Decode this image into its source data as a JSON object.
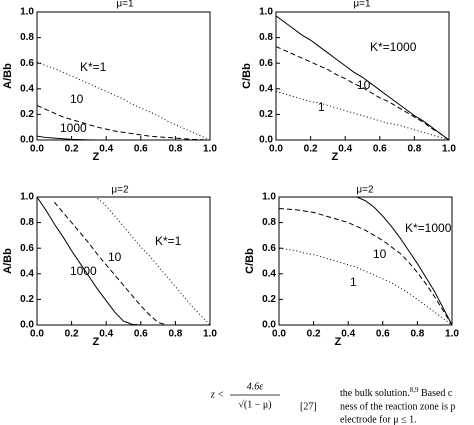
{
  "chart_data": [
    {
      "type": "line",
      "title": "μ=1",
      "xlabel": "Z",
      "ylabel": "A/Bb",
      "x": [
        0,
        0.05,
        0.1,
        0.15,
        0.2,
        0.25,
        0.3,
        0.35,
        0.4,
        0.45,
        0.5,
        0.55,
        0.6,
        0.65,
        0.7,
        0.75,
        0.8,
        0.85,
        0.9,
        0.95,
        1.0
      ],
      "xlim": [
        0,
        1
      ],
      "ylim": [
        0,
        1
      ],
      "xticks": [
        {
          "value": 0,
          "label": "0.0"
        },
        {
          "value": 0.2,
          "label": "0.2"
        },
        {
          "value": 0.4,
          "label": "0.4"
        },
        {
          "value": 0.6,
          "label": "0.6"
        },
        {
          "value": 0.8,
          "label": "0.8"
        },
        {
          "value": 1,
          "label": "1.0"
        }
      ],
      "yticks": [
        {
          "value": 0,
          "label": "0.0"
        },
        {
          "value": 0.2,
          "label": "0.2"
        },
        {
          "value": 0.4,
          "label": "0.4"
        },
        {
          "value": 0.6,
          "label": "0.6"
        },
        {
          "value": 0.8,
          "label": "0.8"
        },
        {
          "value": 1,
          "label": "1.0"
        }
      ],
      "series": [
        {
          "name": "K*=1",
          "color": "#000000",
          "style": "dotted",
          "values": [
            0.61,
            0.58,
            0.56,
            0.53,
            0.5,
            0.47,
            0.44,
            0.41,
            0.38,
            0.35,
            0.32,
            0.28,
            0.25,
            0.22,
            0.19,
            0.15,
            0.12,
            0.09,
            0.06,
            0.03,
            0
          ]
        },
        {
          "name": "10",
          "color": "#000000",
          "style": "dashed",
          "values": [
            0.27,
            0.24,
            0.21,
            0.18,
            0.16,
            0.14,
            0.12,
            0.1,
            0.085,
            0.07,
            0.06,
            0.05,
            0.04,
            0.03,
            0.025,
            0.02,
            0.015,
            0.01,
            0.005,
            0.002,
            0
          ]
        },
        {
          "name": "1000",
          "color": "#000000",
          "style": "solid",
          "values": [
            0.03,
            0.02,
            0.015,
            0.01,
            0.005,
            0.003,
            0.001,
            0,
            0,
            0,
            0,
            0,
            0,
            0,
            0,
            0,
            0,
            0,
            0,
            0,
            0
          ]
        }
      ]
    },
    {
      "type": "line",
      "title": "μ=1",
      "xlabel": "Z",
      "ylabel": "C/Bb",
      "x": [
        0,
        0.05,
        0.1,
        0.15,
        0.2,
        0.25,
        0.3,
        0.35,
        0.4,
        0.45,
        0.5,
        0.55,
        0.6,
        0.65,
        0.7,
        0.75,
        0.8,
        0.85,
        0.9,
        0.95,
        1.0
      ],
      "xlim": [
        0,
        1
      ],
      "ylim": [
        0,
        1
      ],
      "xticks": [
        {
          "value": 0,
          "label": "0.0"
        },
        {
          "value": 0.2,
          "label": "0.2"
        },
        {
          "value": 0.4,
          "label": "0.4"
        },
        {
          "value": 0.6,
          "label": "0.6"
        },
        {
          "value": 0.8,
          "label": "0.8"
        },
        {
          "value": 1,
          "label": "1.0"
        }
      ],
      "yticks": [
        {
          "value": 0,
          "label": "0.0"
        },
        {
          "value": 0.2,
          "label": "0.2"
        },
        {
          "value": 0.4,
          "label": "0.4"
        },
        {
          "value": 0.6,
          "label": "0.6"
        },
        {
          "value": 0.8,
          "label": "0.8"
        },
        {
          "value": 1,
          "label": "1.0"
        }
      ],
      "series": [
        {
          "name": "K*=1000",
          "color": "#000000",
          "style": "solid",
          "values": [
            0.97,
            0.92,
            0.87,
            0.82,
            0.78,
            0.73,
            0.68,
            0.63,
            0.58,
            0.53,
            0.49,
            0.44,
            0.39,
            0.34,
            0.29,
            0.24,
            0.19,
            0.15,
            0.1,
            0.05,
            0
          ]
        },
        {
          "name": "10",
          "color": "#000000",
          "style": "dashed",
          "values": [
            0.73,
            0.7,
            0.67,
            0.64,
            0.61,
            0.58,
            0.55,
            0.51,
            0.48,
            0.44,
            0.41,
            0.37,
            0.33,
            0.3,
            0.26,
            0.22,
            0.18,
            0.14,
            0.09,
            0.05,
            0
          ]
        },
        {
          "name": "1",
          "color": "#000000",
          "style": "dotted",
          "values": [
            0.38,
            0.36,
            0.34,
            0.32,
            0.3,
            0.29,
            0.27,
            0.25,
            0.23,
            0.21,
            0.19,
            0.17,
            0.15,
            0.13,
            0.12,
            0.1,
            0.08,
            0.06,
            0.04,
            0.02,
            0
          ]
        }
      ]
    },
    {
      "type": "line",
      "title": "μ=2",
      "xlabel": "Z",
      "ylabel": "A/Bb",
      "x": [
        0,
        0.05,
        0.1,
        0.15,
        0.2,
        0.25,
        0.3,
        0.35,
        0.4,
        0.45,
        0.5,
        0.55,
        0.6,
        0.65,
        0.7,
        0.75,
        0.8,
        0.85,
        0.9,
        0.95,
        1.0
      ],
      "xlim": [
        0,
        1
      ],
      "ylim": [
        0,
        1
      ],
      "xticks": [
        {
          "value": 0,
          "label": "0.0"
        },
        {
          "value": 0.2,
          "label": "0.2"
        },
        {
          "value": 0.4,
          "label": "0.4"
        },
        {
          "value": 0.6,
          "label": "0.6"
        },
        {
          "value": 0.8,
          "label": "0.8"
        },
        {
          "value": 1,
          "label": "1.0"
        }
      ],
      "yticks": [
        {
          "value": 0,
          "label": "0.0"
        },
        {
          "value": 0.2,
          "label": "0.2"
        },
        {
          "value": 0.4,
          "label": "0.4"
        },
        {
          "value": 0.6,
          "label": "0.6"
        },
        {
          "value": 0.8,
          "label": "0.8"
        },
        {
          "value": 1,
          "label": "1.0"
        }
      ],
      "series": [
        {
          "name": "K*=1",
          "color": "#000000",
          "style": "dotted",
          "values": [
            null,
            null,
            null,
            null,
            null,
            null,
            null,
            0.99,
            0.93,
            0.85,
            0.77,
            0.69,
            0.61,
            0.54,
            0.46,
            0.38,
            0.3,
            0.22,
            0.14,
            0.07,
            0
          ]
        },
        {
          "name": "10",
          "color": "#000000",
          "style": "dashed",
          "values": [
            null,
            null,
            0.96,
            0.88,
            0.8,
            0.72,
            0.64,
            0.55,
            0.47,
            0.39,
            0.31,
            0.23,
            0.15,
            0.08,
            0.02,
            0,
            0,
            0,
            0,
            0,
            0
          ]
        },
        {
          "name": "1000",
          "color": "#000000",
          "style": "solid",
          "values": [
            1,
            0.9,
            0.79,
            0.69,
            0.58,
            0.48,
            0.38,
            0.28,
            0.19,
            0.1,
            0.03,
            0.005,
            0,
            0,
            0,
            0,
            0,
            0,
            0,
            0,
            0
          ]
        }
      ]
    },
    {
      "type": "line",
      "title": "μ=2",
      "xlabel": "Z",
      "ylabel": "C/Bb",
      "x": [
        0,
        0.05,
        0.1,
        0.15,
        0.2,
        0.25,
        0.3,
        0.35,
        0.4,
        0.45,
        0.5,
        0.55,
        0.6,
        0.65,
        0.7,
        0.75,
        0.8,
        0.85,
        0.9,
        0.95,
        1.0
      ],
      "xlim": [
        0,
        1
      ],
      "ylim": [
        0,
        1
      ],
      "xticks": [
        {
          "value": 0,
          "label": "0.0"
        },
        {
          "value": 0.2,
          "label": "0.2"
        },
        {
          "value": 0.4,
          "label": "0.4"
        },
        {
          "value": 0.6,
          "label": "0.6"
        },
        {
          "value": 0.8,
          "label": "0.8"
        },
        {
          "value": 1,
          "label": "1.0"
        }
      ],
      "yticks": [
        {
          "value": 0,
          "label": "0.0"
        },
        {
          "value": 0.2,
          "label": "0.2"
        },
        {
          "value": 0.4,
          "label": "0.4"
        },
        {
          "value": 0.6,
          "label": "0.6"
        },
        {
          "value": 0.8,
          "label": "0.8"
        },
        {
          "value": 1,
          "label": "1.0"
        }
      ],
      "series": [
        {
          "name": "K*=1000",
          "color": "#000000",
          "style": "solid",
          "values": [
            null,
            null,
            null,
            null,
            1,
            1,
            1,
            1,
            1,
            1,
            0.97,
            0.92,
            0.85,
            0.77,
            0.68,
            0.58,
            0.48,
            0.37,
            0.26,
            0.13,
            0
          ]
        },
        {
          "name": "10",
          "color": "#000000",
          "style": "dashed",
          "values": [
            0.91,
            0.905,
            0.9,
            0.89,
            0.88,
            0.86,
            0.84,
            0.82,
            0.8,
            0.77,
            0.74,
            0.7,
            0.66,
            0.61,
            0.56,
            0.49,
            0.41,
            0.32,
            0.22,
            0.11,
            0
          ]
        },
        {
          "name": "1",
          "color": "#000000",
          "style": "dotted",
          "values": [
            0.6,
            0.59,
            0.58,
            0.56,
            0.55,
            0.53,
            0.51,
            0.49,
            0.47,
            0.45,
            0.42,
            0.39,
            0.36,
            0.33,
            0.29,
            0.25,
            0.2,
            0.15,
            0.1,
            0.05,
            0
          ]
        }
      ]
    }
  ],
  "text": {
    "equation": {
      "lhs": "z <",
      "numerator": "4.6ε",
      "denominator": "√(1 − μ)"
    },
    "equation_number": "[27]",
    "paragraph": {
      "line1": "the bulk solution.",
      "superscript": "8,9",
      "line1_end": " Based c",
      "line2": "ness of the reaction zone is p",
      "line3": "electrode for μ ≤ 1."
    }
  }
}
